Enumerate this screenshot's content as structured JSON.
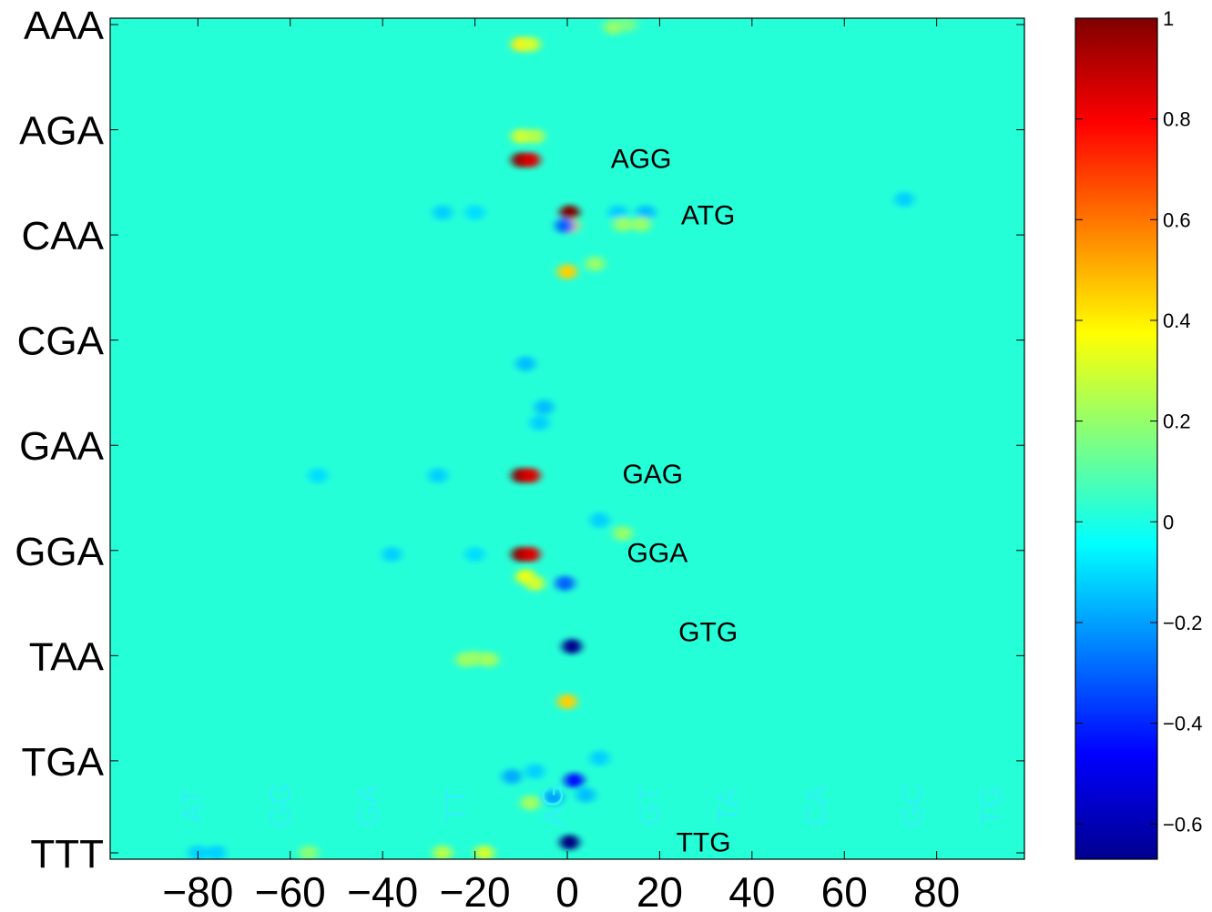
{
  "chart_data": {
    "type": "heatmap",
    "title": "",
    "xlabel": "",
    "ylabel": "",
    "xlim": [
      -99,
      99
    ],
    "x_ticks": [
      "−80",
      "−60",
      "−40",
      "−20",
      "0",
      "20",
      "40",
      "60",
      "80"
    ],
    "x_tick_values": [
      -80,
      -60,
      -40,
      -20,
      0,
      20,
      40,
      60,
      80
    ],
    "y_ticks": [
      "AAA",
      "AGA",
      "CAA",
      "CGA",
      "GAA",
      "GGA",
      "TAA",
      "TGA",
      "TTT"
    ],
    "y_range": [
      1,
      64
    ],
    "y_tick_rows": [
      1,
      9,
      17,
      25,
      33,
      41,
      49,
      57,
      64
    ],
    "colorbar": {
      "ticks": [
        "1",
        "0.8",
        "0.6",
        "0.4",
        "0.2",
        "0",
        "−0.2",
        "−0.4",
        "−0.6"
      ],
      "tick_values": [
        1,
        0.8,
        0.6,
        0.4,
        0.2,
        0,
        -0.2,
        -0.4,
        -0.6
      ],
      "range": [
        -0.67,
        1
      ],
      "colormap": "jet"
    },
    "background_value": 0,
    "annotations": [
      {
        "text": "AGG",
        "x": 16,
        "row": 11.2
      },
      {
        "text": "ATG",
        "x": 30.5,
        "row": 15.5
      },
      {
        "text": "GAG",
        "x": 18.5,
        "row": 35.2
      },
      {
        "text": "GGA",
        "x": 19.5,
        "row": 41.2
      },
      {
        "text": "GTG",
        "x": 30.5,
        "row": 47.2
      },
      {
        "text": "TTG",
        "x": 29.5,
        "row": 63.2
      }
    ],
    "watermark_labels": [
      {
        "text": "AT",
        "x": -79
      },
      {
        "text": "GG",
        "x": -60
      },
      {
        "text": "GA",
        "x": -41
      },
      {
        "text": "TT",
        "x": -22
      },
      {
        "text": "AG",
        "x": -1
      },
      {
        "text": "GT",
        "x": 20
      },
      {
        "text": "TA",
        "x": 37
      },
      {
        "text": "CA",
        "x": 56
      },
      {
        "text": "GC",
        "x": 77
      },
      {
        "text": "TG",
        "x": 94
      }
    ],
    "cells": [
      {
        "x": -10,
        "row": 11.3,
        "v": 1.0
      },
      {
        "x": -8,
        "row": 11.3,
        "v": 0.85
      },
      {
        "x": -10,
        "row": 35.3,
        "v": 1.0
      },
      {
        "x": -8,
        "row": 35.3,
        "v": 0.85
      },
      {
        "x": -10,
        "row": 41.3,
        "v": 1.0
      },
      {
        "x": -8,
        "row": 41.3,
        "v": 0.85
      },
      {
        "x": 0.5,
        "row": 15.3,
        "v": 1.0
      },
      {
        "x": 0.5,
        "row": 16.3,
        "v": 0.45
      },
      {
        "x": -0.5,
        "row": 16.3,
        "v": -0.3
      },
      {
        "x": -10,
        "row": 2.5,
        "v": 0.4
      },
      {
        "x": -8,
        "row": 2.5,
        "v": 0.3
      },
      {
        "x": -10,
        "row": 9.5,
        "v": 0.3
      },
      {
        "x": -7,
        "row": 9.5,
        "v": 0.25
      },
      {
        "x": 0,
        "row": 19.8,
        "v": 0.45
      },
      {
        "x": 0,
        "row": 52.5,
        "v": 0.45
      },
      {
        "x": 1,
        "row": 48.3,
        "v": -0.65
      },
      {
        "x": 0.5,
        "row": 63.2,
        "v": -0.67
      },
      {
        "x": 1.5,
        "row": 58.5,
        "v": -0.45
      },
      {
        "x": -0.5,
        "row": 43.5,
        "v": -0.3
      },
      {
        "x": -9,
        "row": 43.0,
        "v": 0.35
      },
      {
        "x": -7,
        "row": 43.5,
        "v": 0.3
      },
      {
        "x": -17,
        "row": 49.3,
        "v": 0.22
      },
      {
        "x": -22,
        "row": 49.3,
        "v": 0.22
      },
      {
        "x": -27,
        "row": 64.0,
        "v": 0.25
      },
      {
        "x": -18,
        "row": 64.0,
        "v": 0.3
      },
      {
        "x": 10,
        "row": 1.2,
        "v": 0.2
      },
      {
        "x": 13,
        "row": 1.0,
        "v": 0.15
      },
      {
        "x": -20,
        "row": 15.3,
        "v": -0.1
      },
      {
        "x": -27,
        "row": 15.3,
        "v": -0.12
      },
      {
        "x": 11,
        "row": 15.3,
        "v": -0.12
      },
      {
        "x": 17,
        "row": 15.3,
        "v": -0.15
      },
      {
        "x": 16,
        "row": 16.2,
        "v": 0.2
      },
      {
        "x": 12,
        "row": 16.2,
        "v": 0.2
      },
      {
        "x": -9,
        "row": 26.8,
        "v": -0.15
      },
      {
        "x": -5,
        "row": 30.1,
        "v": -0.15
      },
      {
        "x": -6,
        "row": 31.3,
        "v": -0.12
      },
      {
        "x": -28,
        "row": 35.3,
        "v": -0.12
      },
      {
        "x": -54,
        "row": 35.3,
        "v": -0.1
      },
      {
        "x": 7,
        "row": 38.7,
        "v": -0.12
      },
      {
        "x": 12,
        "row": 39.7,
        "v": 0.2
      },
      {
        "x": -38,
        "row": 41.3,
        "v": -0.12
      },
      {
        "x": -20,
        "row": 41.3,
        "v": -0.1
      },
      {
        "x": 73,
        "row": 14.3,
        "v": -0.12
      },
      {
        "x": 6,
        "row": 19.2,
        "v": 0.2
      },
      {
        "x": 7,
        "row": 56.8,
        "v": -0.12
      },
      {
        "x": -20,
        "row": 49.2,
        "v": 0.2
      },
      {
        "x": -7,
        "row": 57.8,
        "v": -0.12
      },
      {
        "x": -12,
        "row": 58.2,
        "v": -0.18
      },
      {
        "x": -8,
        "row": 60.2,
        "v": 0.22
      },
      {
        "x": -80,
        "row": 64.0,
        "v": -0.12
      },
      {
        "x": -76,
        "row": 64.0,
        "v": -0.12
      },
      {
        "x": -56,
        "row": 64.0,
        "v": 0.18
      },
      {
        "x": 4,
        "row": 59.6,
        "v": -0.15
      },
      {
        "x": -3,
        "row": 59.8,
        "v": -0.2
      }
    ]
  }
}
